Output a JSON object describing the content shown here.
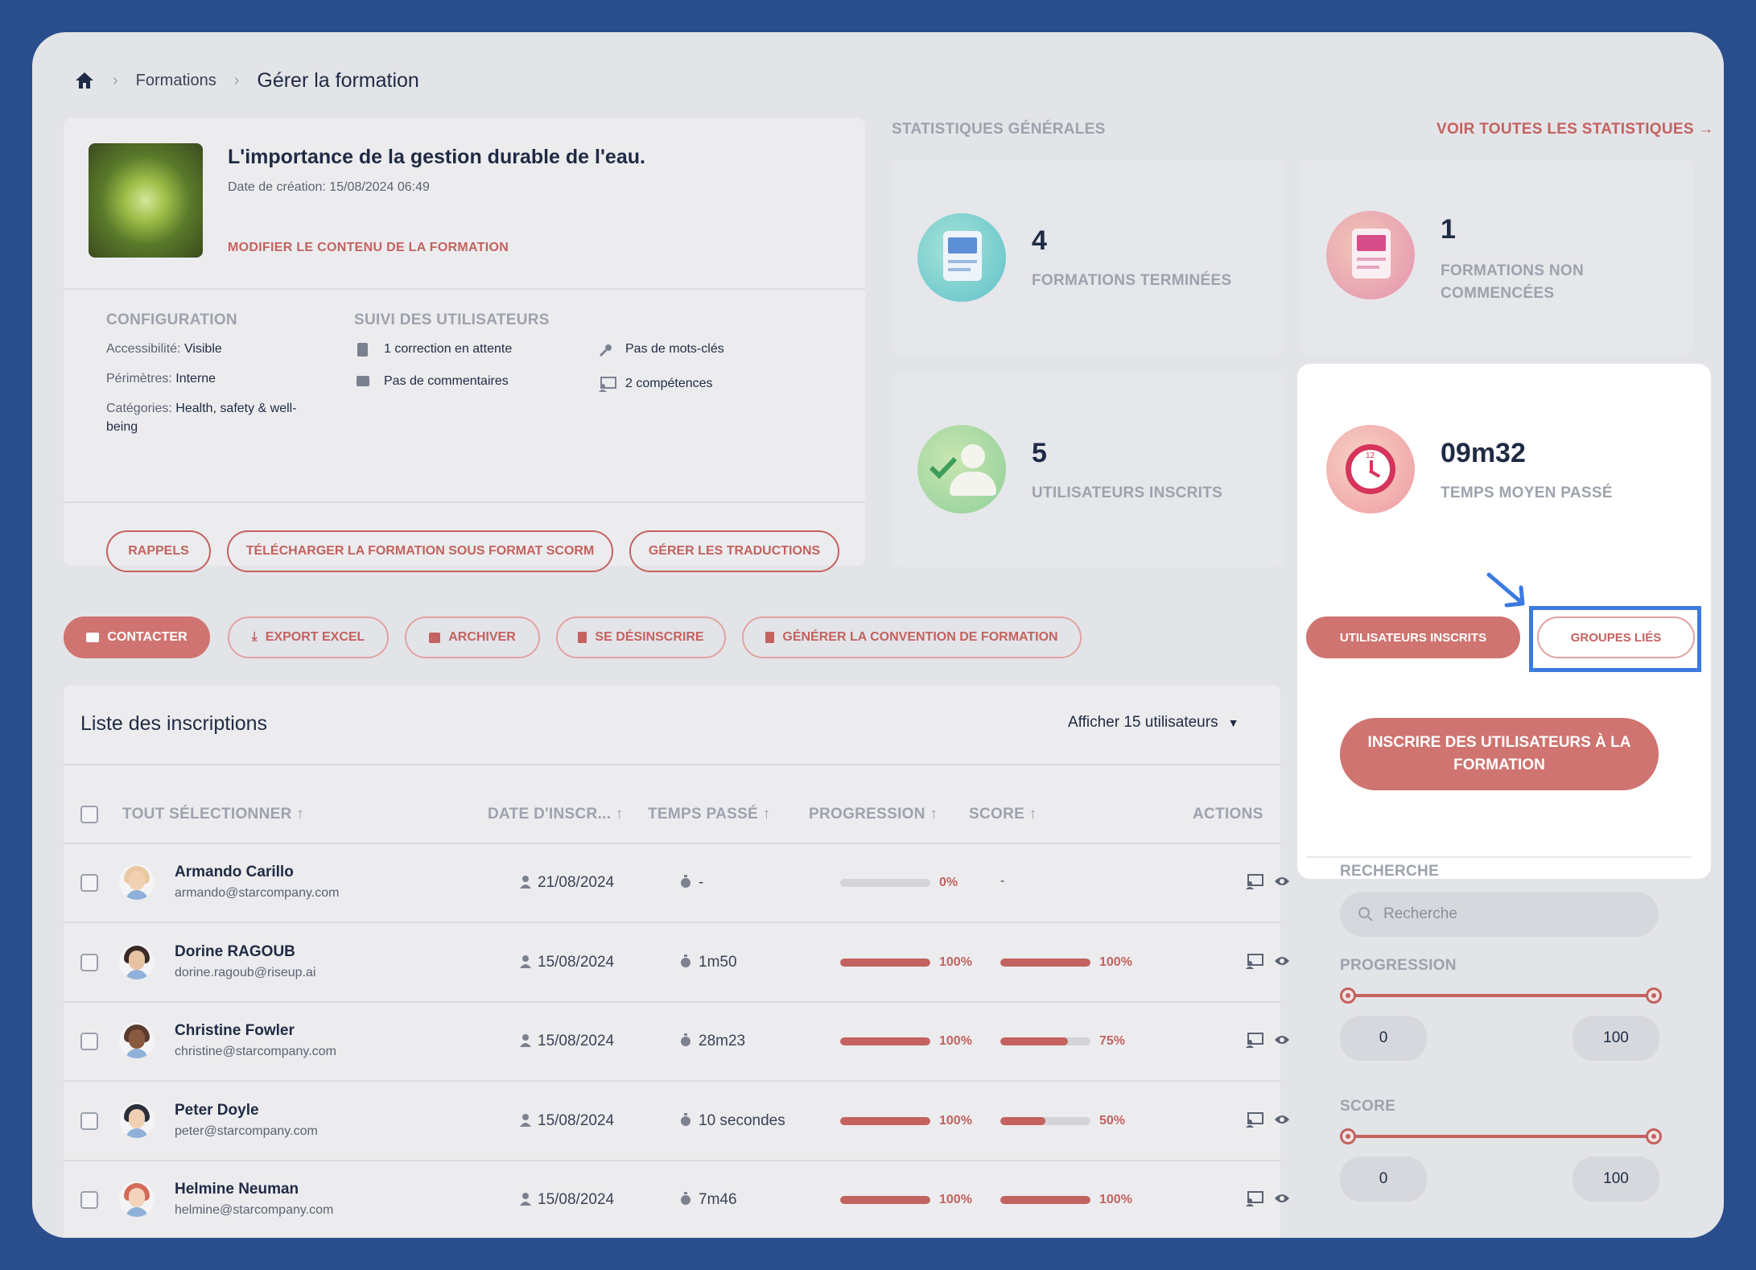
{
  "breadcrumb": {
    "item1": "Formations",
    "item2": "Gérer la formation"
  },
  "course": {
    "title": "L'importance de la gestion durable de l'eau.",
    "date": "Date de création: 15/08/2024 06:49",
    "edit_link": "MODIFIER LE CONTENU DE LA FORMATION"
  },
  "config": {
    "heading": "CONFIGURATION",
    "access_label": "Accessibilité:",
    "access_value": "Visible",
    "perim_label": "Périmètres:",
    "perim_value": "Interne",
    "cat_label": "Catégories:",
    "cat_value1": "Health, safety & well-",
    "cat_value2": "being"
  },
  "suivi": {
    "heading": "SUIVI DES UTILISATEURS",
    "corrections": "1 correction en attente",
    "comments": "Pas de commentaires",
    "keywords": "Pas de mots-clés",
    "skills": "2 compétences"
  },
  "course_buttons": {
    "rappels": "RAPPELS",
    "scorm": "TÉLÉCHARGER LA FORMATION SOUS FORMAT SCORM",
    "trad": "GÉRER LES TRADUCTIONS"
  },
  "stats": {
    "heading": "STATISTIQUES GÉNÉRALES",
    "see_all": "VOIR TOUTES LES STATISTIQUES →",
    "done_value": "4",
    "done_label": "FORMATIONS TERMINÉES",
    "notstarted_value": "1",
    "notstarted_label1": "FORMATIONS NON",
    "notstarted_label2": "COMMENCÉES",
    "users_value": "5",
    "users_label": "UTILISATEURS INSCRITS",
    "time_value": "09m32",
    "time_label": "TEMPS MOYEN PASSÉ",
    "clock_num": "12"
  },
  "actions": {
    "contact": "CONTACTER",
    "export": "EXPORT EXCEL",
    "archive": "ARCHIVER",
    "unsubscribe": "SE DÉSINSCRIRE",
    "convention": "GÉNÉRER LA CONVENTION DE FORMATION"
  },
  "tabs": {
    "users": "UTILISATEURS INSCRITS",
    "groups": "GROUPES LIÉS"
  },
  "enroll_button_line1": "INSCRIRE DES UTILISATEURS À LA",
  "enroll_button_line2": "FORMATION",
  "filters": {
    "search_heading": "RECHERCHE",
    "search_placeholder": "Recherche",
    "progress_heading": "PROGRESSION",
    "progress_min": "0",
    "progress_max": "100",
    "score_heading": "SCORE",
    "score_min": "0",
    "score_max": "100"
  },
  "list": {
    "title": "Liste des inscriptions",
    "per_page": "Afficher 15 utilisateurs",
    "col_select": "TOUT SÉLECTIONNER ↑",
    "col_date": "DATE D'INSCR... ↑",
    "col_time": "TEMPS PASSÉ ↑",
    "col_progress": "PROGRESSION ↑",
    "col_score": "SCORE ↑",
    "col_actions": "ACTIONS",
    "rows": [
      {
        "name": "Armando Carillo",
        "email": "armando@starcompany.com",
        "date": "21/08/2024",
        "time": "-",
        "progress": 0,
        "progress_label": "0%",
        "score": null,
        "score_label": "-"
      },
      {
        "name": "Dorine RAGOUB",
        "email": "dorine.ragoub@riseup.ai",
        "date": "15/08/2024",
        "time": "1m50",
        "progress": 100,
        "progress_label": "100%",
        "score": 100,
        "score_label": "100%"
      },
      {
        "name": "Christine Fowler",
        "email": "christine@starcompany.com",
        "date": "15/08/2024",
        "time": "28m23",
        "progress": 100,
        "progress_label": "100%",
        "score": 75,
        "score_label": "75%"
      },
      {
        "name": "Peter Doyle",
        "email": "peter@starcompany.com",
        "date": "15/08/2024",
        "time": "10 secondes",
        "progress": 100,
        "progress_label": "100%",
        "score": 50,
        "score_label": "50%"
      },
      {
        "name": "Helmine Neuman",
        "email": "helmine@starcompany.com",
        "date": "15/08/2024",
        "time": "7m46",
        "progress": 100,
        "progress_label": "100%",
        "score": 100,
        "score_label": "100%"
      }
    ]
  },
  "colors": {
    "accent": "#c3625f",
    "background": "#2a4e8c",
    "highlight": "#3b7ae0"
  }
}
